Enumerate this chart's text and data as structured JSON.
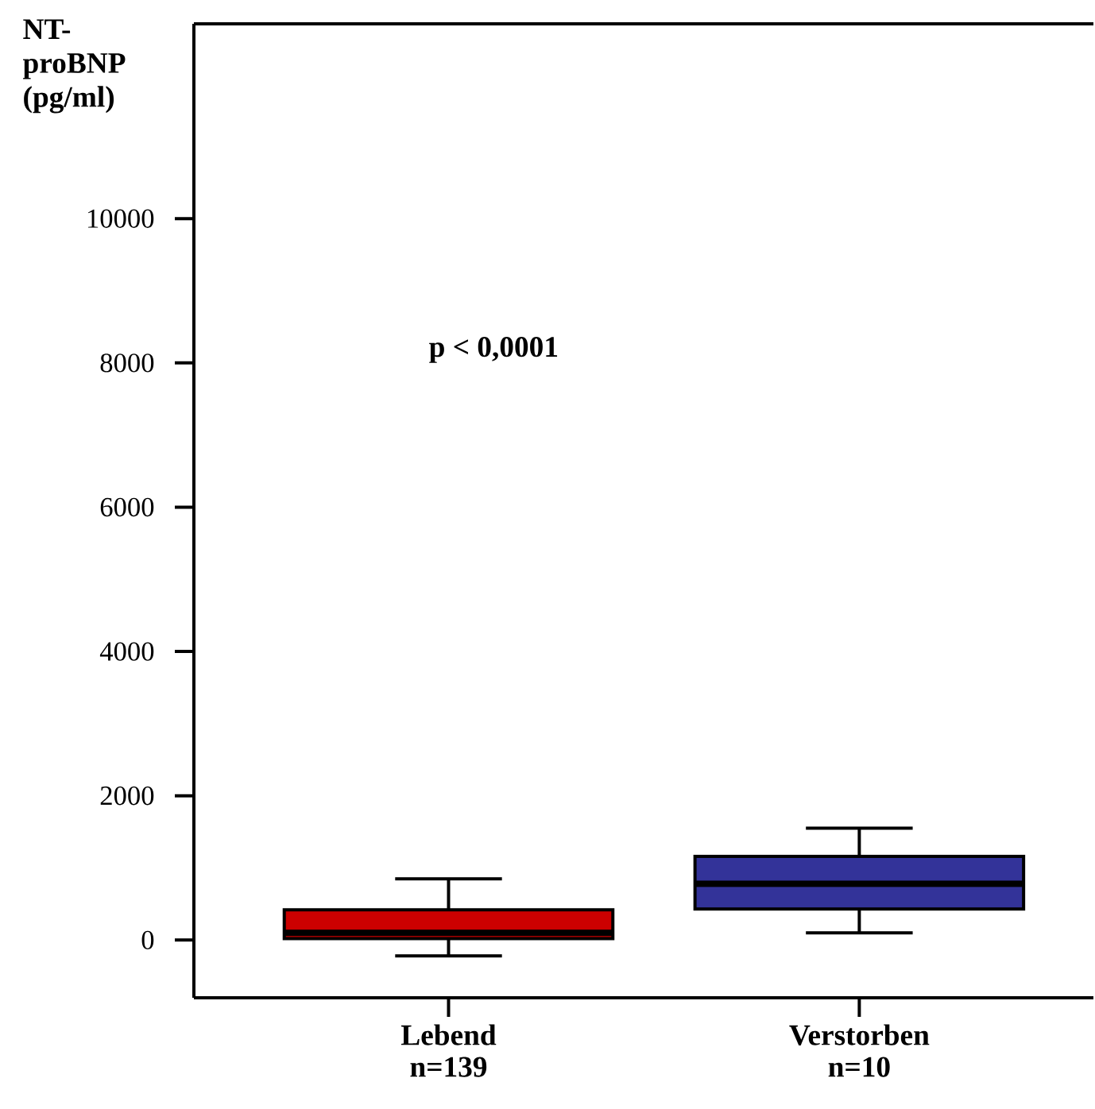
{
  "chart_data": {
    "type": "box",
    "ylabel": "NT-proBNP (pg/ml)",
    "categories": [
      "Lebend n=139",
      "Verstorben n=10"
    ],
    "series": [
      {
        "color": "#cc0000",
        "boxes": [
          {
            "low": -220,
            "q1": 20,
            "median": 100,
            "q3": 420,
            "high": 850
          },
          null
        ]
      },
      {
        "color": "#333399",
        "boxes": [
          null,
          {
            "low": 100,
            "q1": 430,
            "median": 780,
            "q3": 1160,
            "high": 1550
          }
        ]
      }
    ],
    "ylim": [
      -800,
      12700
    ],
    "yticks": [
      0,
      2000,
      4000,
      6000,
      8000,
      10000
    ],
    "annotations": [
      "p < 0,0001"
    ]
  }
}
